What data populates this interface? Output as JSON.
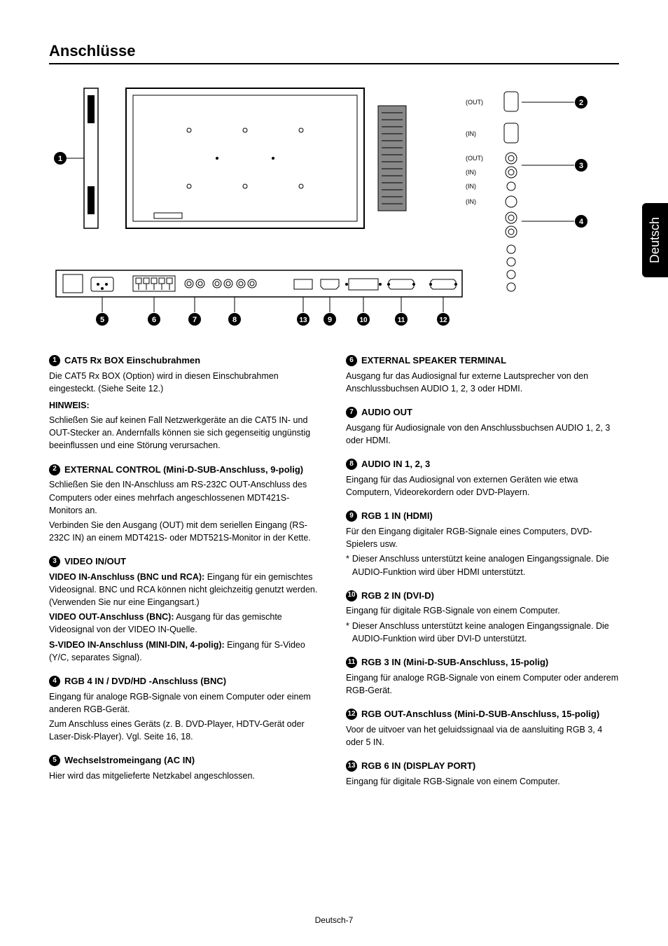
{
  "page_title": "Anschlüsse",
  "lang_tab": "Deutsch",
  "page_number": "Deutsch-7",
  "diagram_labels": {
    "out1": "(OUT)",
    "in1": "(IN)",
    "out2": "(OUT)",
    "in2": "(IN)",
    "in3": "(IN)",
    "in4": "(IN)"
  },
  "callouts": [
    "1",
    "2",
    "3",
    "4",
    "5",
    "6",
    "7",
    "8",
    "9",
    "10",
    "11",
    "12",
    "13"
  ],
  "left": [
    {
      "num": "1",
      "title": "CAT5 Rx BOX Einschubrahmen",
      "paras": [
        {
          "t": "Die CAT5 Rx BOX (Option) wird in diesen Einschubrahmen eingesteckt. (Siehe Seite 12.)"
        }
      ],
      "note_label": "HINWEIS:",
      "note": "Schließen Sie auf keinen Fall Netzwerkgeräte an die CAT5 IN- und OUT-Stecker an. Andernfalls können sie sich gegenseitig ungünstig beeinflussen und eine Störung verursachen."
    },
    {
      "num": "2",
      "title": "EXTERNAL CONTROL (Mini-D-SUB-Anschluss, 9-polig)",
      "paras": [
        {
          "t": "Schließen Sie den IN-Anschluss am RS-232C OUT-Anschluss des Computers oder eines mehrfach angeschlossenen MDT421S-Monitors an."
        },
        {
          "t": "Verbinden Sie den Ausgang (OUT) mit dem seriellen Eingang (RS-232C IN) an einem MDT421S- oder MDT521S-Monitor in der Kette."
        }
      ]
    },
    {
      "num": "3",
      "title": "VIDEO IN/OUT",
      "paras": [
        {
          "b": "VIDEO IN-Anschluss (BNC und RCA):",
          "t": " Eingang für ein gemischtes Videosignal. BNC und RCA können nicht gleichzeitig genutzt werden. (Verwenden Sie nur eine Eingangsart.)"
        },
        {
          "b": "VIDEO OUT-Anschluss (BNC):",
          "t": " Ausgang für das gemischte Videosignal von der VIDEO IN-Quelle."
        },
        {
          "b": "S-VIDEO IN-Anschluss (MINI-DIN, 4-polig):",
          "t": " Eingang für S-Video (Y/C, separates Signal)."
        }
      ]
    },
    {
      "num": "4",
      "title": "RGB 4 IN / DVD/HD -Anschluss (BNC)",
      "paras": [
        {
          "t": "Eingang für analoge RGB-Signale von einem Computer oder einem anderen RGB-Gerät."
        },
        {
          "t": "Zum Anschluss eines Geräts (z. B. DVD-Player, HDTV-Gerät oder Laser-Disk-Player). Vgl. Seite 16, 18."
        }
      ]
    },
    {
      "num": "5",
      "title": "Wechselstromeingang (AC IN)",
      "paras": [
        {
          "t": "Hier wird das mitgelieferte Netzkabel angeschlossen."
        }
      ]
    }
  ],
  "right": [
    {
      "num": "6",
      "title": "EXTERNAL SPEAKER TERMINAL",
      "paras": [
        {
          "t": "Ausgang fur das Audiosignal fur externe Lautsprecher von den Anschlussbuchsen AUDIO 1, 2, 3 oder HDMI."
        }
      ]
    },
    {
      "num": "7",
      "title": "AUDIO OUT",
      "paras": [
        {
          "t": "Ausgang für Audiosignale von den Anschlussbuchsen AUDIO 1, 2, 3 oder HDMI."
        }
      ]
    },
    {
      "num": "8",
      "title": "AUDIO IN 1, 2, 3",
      "paras": [
        {
          "t": "Eingang für das Audiosignal von externen Geräten wie etwa Computern, Videorekordern oder DVD-Playern."
        }
      ]
    },
    {
      "num": "9",
      "title": "RGB 1 IN (HDMI)",
      "paras": [
        {
          "t": "Für den Eingang digitaler RGB-Signale eines Computers, DVD-Spielers usw."
        }
      ],
      "stars": [
        "Dieser Anschluss unterstützt keine analogen Eingangssignale. Die AUDIO-Funktion wird über HDMI unterstützt."
      ]
    },
    {
      "num": "10",
      "title": "RGB 2 IN (DVI-D)",
      "paras": [
        {
          "t": "Eingang für digitale RGB-Signale von einem Computer."
        }
      ],
      "stars": [
        "Dieser Anschluss unterstützt keine analogen Eingangssignale. Die AUDIO-Funktion wird über DVI-D unterstützt."
      ]
    },
    {
      "num": "11",
      "title": "RGB 3 IN (Mini-D-SUB-Anschluss, 15-polig)",
      "paras": [
        {
          "t": "Eingang für analoge RGB-Signale von einem Computer oder anderem RGB-Gerät."
        }
      ]
    },
    {
      "num": "12",
      "title": "RGB OUT-Anschluss (Mini-D-SUB-Anschluss, 15-polig)",
      "paras": [
        {
          "t": "Voor de uitvoer van het geluidssignaal via de aansluiting RGB 3, 4 oder 5 IN."
        }
      ]
    },
    {
      "num": "13",
      "title": "RGB 6 IN (DISPLAY PORT)",
      "paras": [
        {
          "t": "Eingang für digitale RGB-Signale von einem Computer."
        }
      ]
    }
  ]
}
